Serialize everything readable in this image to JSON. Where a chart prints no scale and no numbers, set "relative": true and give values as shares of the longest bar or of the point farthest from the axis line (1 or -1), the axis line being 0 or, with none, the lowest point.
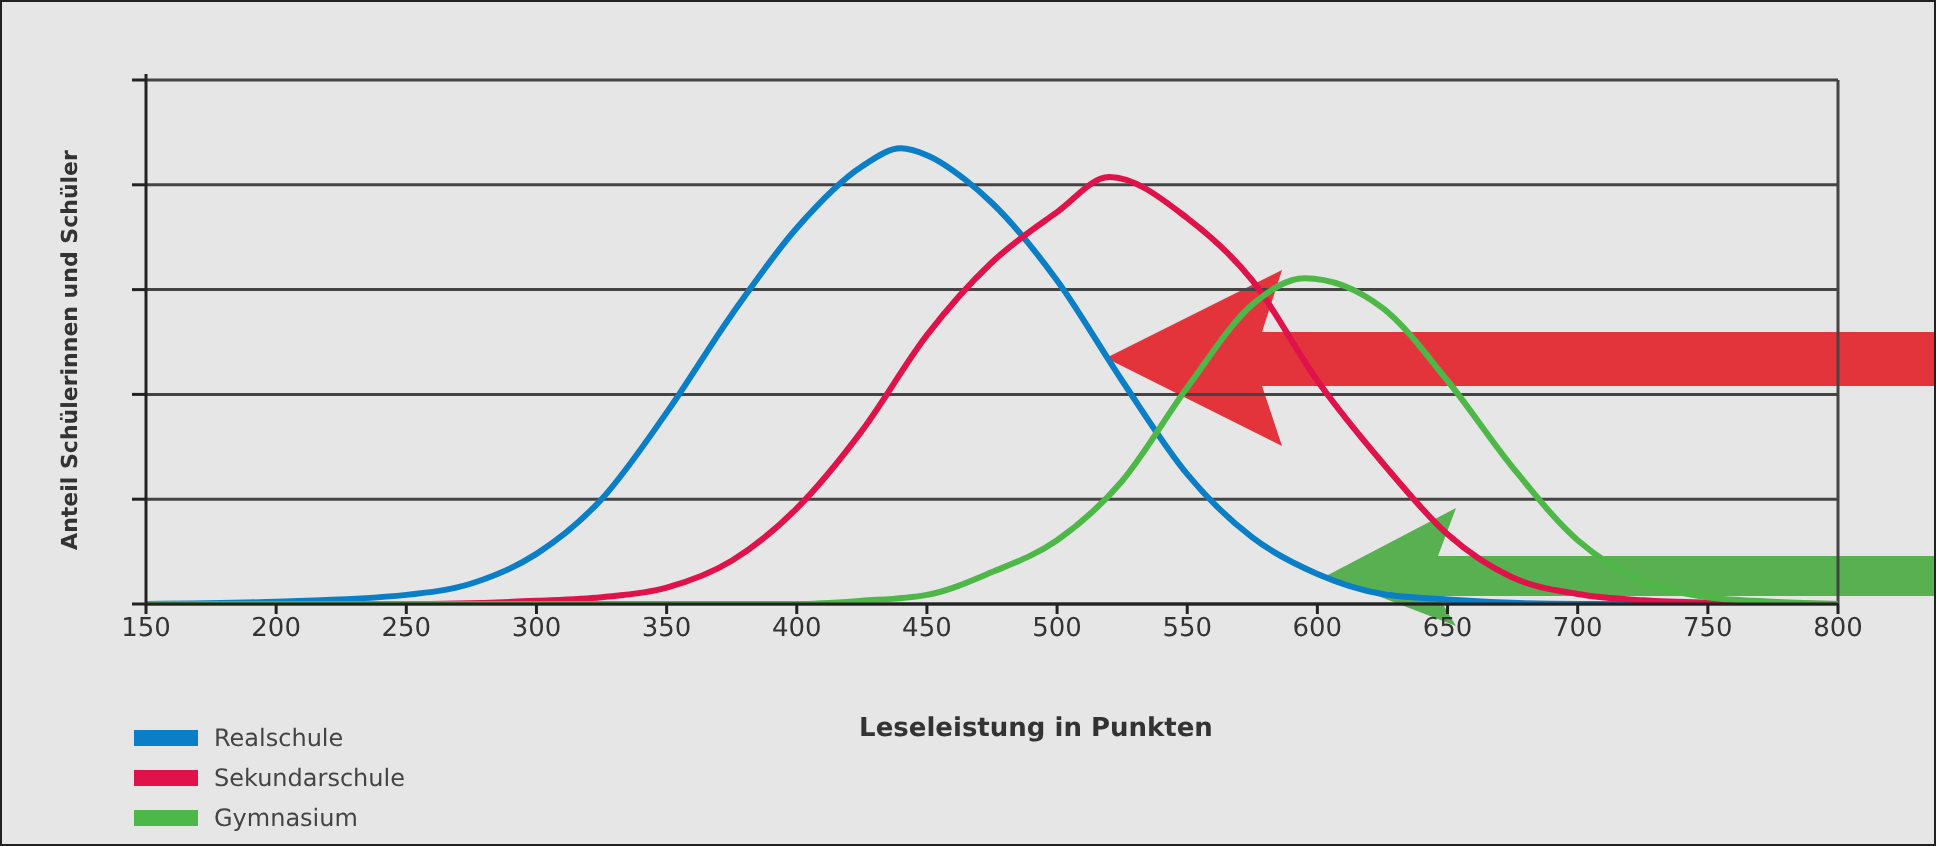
{
  "chart_data": {
    "type": "line",
    "relative": true,
    "xlabel": "Leseleistung in Punkten",
    "ylabel": "Anteil Schülerinnen und Schüler",
    "xlim": [
      150,
      800
    ],
    "xticks": [
      150,
      200,
      250,
      300,
      350,
      400,
      450,
      500,
      550,
      600,
      650,
      700,
      750,
      800
    ],
    "grid": "y",
    "legend": "bottom left",
    "marker": "none",
    "line_style": "solid",
    "series": [
      {
        "name": "Realschule",
        "color": "#0a7ec6",
        "x": [
          150,
          200,
          250,
          275,
          300,
          325,
          350,
          375,
          400,
          425,
          440,
          450,
          465,
          475,
          500,
          525,
          550,
          575,
          600,
          625,
          650,
          700,
          750,
          800
        ],
        "values": [
          0,
          0.005,
          0.02,
          0.045,
          0.11,
          0.23,
          0.42,
          0.635,
          0.825,
          0.96,
          1,
          0.985,
          0.93,
          0.88,
          0.71,
          0.49,
          0.285,
          0.146,
          0.066,
          0.022,
          0.01,
          0,
          0,
          0
        ]
      },
      {
        "name": "Sekundarschule",
        "color": "#e0124a",
        "x": [
          150,
          250,
          300,
          325,
          350,
          375,
          400,
          425,
          450,
          475,
          500,
          520,
          550,
          575,
          600,
          625,
          650,
          675,
          700,
          725,
          750,
          800
        ],
        "values": [
          0,
          0,
          0.007,
          0.015,
          0.036,
          0.095,
          0.21,
          0.38,
          0.59,
          0.75,
          0.86,
          0.937,
          0.847,
          0.71,
          0.49,
          0.31,
          0.153,
          0.058,
          0.022,
          0.008,
          0.003,
          0
        ]
      },
      {
        "name": "Gymnasium",
        "color": "#4db848",
        "x": [
          150,
          300,
          400,
          425,
          450,
          475,
          500,
          525,
          550,
          575,
          595,
          625,
          650,
          675,
          700,
          725,
          750,
          775,
          800
        ],
        "values": [
          0,
          0,
          0,
          0.007,
          0.02,
          0.07,
          0.14,
          0.27,
          0.475,
          0.657,
          0.715,
          0.65,
          0.49,
          0.3,
          0.14,
          0.05,
          0.015,
          0.005,
          0
        ]
      }
    ]
  }
}
